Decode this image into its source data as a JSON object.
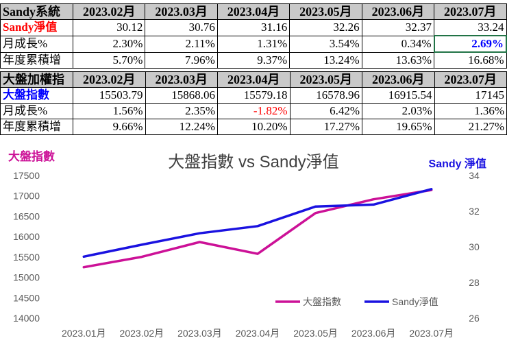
{
  "table_sandy": {
    "header": [
      "Sandy系統",
      "2023.02月",
      "2023.03月",
      "2023.04月",
      "2023.05月",
      "2023.06月",
      "2023.07月"
    ],
    "nav_label": "Sandy淨值",
    "nav": [
      "30.12",
      "30.76",
      "31.16",
      "32.26",
      "32.37",
      "33.24"
    ],
    "mom_label": "月成長%",
    "mom": [
      "2.30%",
      "2.11%",
      "1.31%",
      "3.54%",
      "0.34%",
      "2.69%"
    ],
    "ytd_label": "年度累積增",
    "ytd": [
      "5.70%",
      "7.96%",
      "9.37%",
      "13.24%",
      "13.63%",
      "16.68%"
    ]
  },
  "table_index": {
    "header": [
      "大盤加權指",
      "2023.02月",
      "2023.03月",
      "2023.04月",
      "2023.05月",
      "2023.06月",
      "2023.07月"
    ],
    "index_label": "大盤指數",
    "index": [
      "15503.79",
      "15868.06",
      "15579.18",
      "16578.96",
      "16915.54",
      "17145"
    ],
    "mom_label": "月成長%",
    "mom": [
      "1.56%",
      "2.35%",
      "-1.82%",
      "6.42%",
      "2.03%",
      "1.36%"
    ],
    "ytd_label": "年度累積增",
    "ytd": [
      "9.66%",
      "12.24%",
      "10.20%",
      "17.27%",
      "19.65%",
      "21.27%"
    ]
  },
  "chart_data": {
    "type": "line",
    "title": "大盤指數 vs Sandy淨值",
    "left_axis_label": "大盤指數",
    "right_axis_label": "Sandy 淨值",
    "categories": [
      "2023.01月",
      "2023.02月",
      "2023.03月",
      "2023.04月",
      "2023.05月",
      "2023.06月",
      "2023.07月"
    ],
    "y_left": {
      "min": 14000,
      "max": 17500,
      "ticks": [
        "14000",
        "14500",
        "15000",
        "15500",
        "16000",
        "16500",
        "17000",
        "17500"
      ]
    },
    "y_right": {
      "min": 26,
      "max": 34,
      "ticks": [
        "26",
        "28",
        "30",
        "32",
        "34"
      ]
    },
    "series": [
      {
        "name": "大盤指數",
        "axis": "left",
        "color": "#cc1197",
        "values": [
          15250,
          15503.79,
          15868.06,
          15579.18,
          16578.96,
          16915.54,
          17145
        ]
      },
      {
        "name": "Sandy淨值",
        "axis": "right",
        "color": "#1a12e0",
        "values": [
          29.45,
          30.12,
          30.76,
          31.16,
          32.26,
          32.37,
          33.24
        ]
      }
    ]
  }
}
